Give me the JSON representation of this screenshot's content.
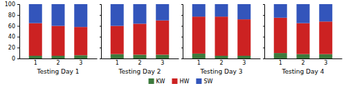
{
  "chart_data": [
    {
      "type": "bar",
      "stacked": true,
      "x_label": "Testing Day 1",
      "categories": [
        "1",
        "2",
        "3"
      ],
      "series": [
        {
          "name": "KW",
          "color": "#3d7a3d",
          "values": [
            5,
            5,
            6
          ]
        },
        {
          "name": "HW",
          "color": "#cc2222",
          "values": [
            60,
            55,
            52
          ]
        },
        {
          "name": "SW",
          "color": "#3355bb",
          "values": [
            35,
            40,
            42
          ]
        }
      ],
      "ylim": [
        0,
        100
      ],
      "yticks": [
        0,
        20,
        40,
        60,
        80,
        100
      ],
      "legend": "bottom"
    },
    {
      "type": "bar",
      "stacked": true,
      "x_label": "Testing Day 2",
      "categories": [
        "1",
        "2",
        "3"
      ],
      "series": [
        {
          "name": "KW",
          "color": "#3d7a3d",
          "values": [
            8,
            7,
            7
          ]
        },
        {
          "name": "HW",
          "color": "#cc2222",
          "values": [
            52,
            57,
            63
          ]
        },
        {
          "name": "SW",
          "color": "#3355bb",
          "values": [
            40,
            36,
            30
          ]
        }
      ],
      "ylim": [
        0,
        100
      ],
      "yticks": [
        0,
        20,
        40,
        60,
        80,
        100
      ],
      "tick_labels": "x"
    },
    {
      "type": "bar",
      "stacked": true,
      "x_label": "Testing Day 3",
      "categories": [
        "1",
        "2",
        "3"
      ],
      "series": [
        {
          "name": "KW",
          "color": "#3d7a3d",
          "values": [
            9,
            5,
            5
          ]
        },
        {
          "name": "HW",
          "color": "#cc2222",
          "values": [
            68,
            72,
            67
          ]
        },
        {
          "name": "SW",
          "color": "#3355bb",
          "values": [
            23,
            23,
            28
          ]
        }
      ],
      "ylim": [
        0,
        100
      ],
      "yticks": [
        0,
        20,
        40,
        60,
        80,
        100
      ],
      "tick_labels": "x"
    },
    {
      "type": "bar",
      "stacked": true,
      "x_label": "Testing Day 4",
      "categories": [
        "1",
        "2",
        "3"
      ],
      "series": [
        {
          "name": "KW",
          "color": "#3d7a3d",
          "values": [
            10,
            8,
            8
          ]
        },
        {
          "name": "HW",
          "color": "#cc2222",
          "values": [
            65,
            57,
            60
          ]
        },
        {
          "name": "SW",
          "color": "#3355bb",
          "values": [
            25,
            35,
            32
          ]
        }
      ],
      "ylim": [
        0,
        100
      ],
      "yticks": [
        0,
        20,
        40,
        60,
        80,
        100
      ],
      "tick_labels": "x"
    }
  ]
}
